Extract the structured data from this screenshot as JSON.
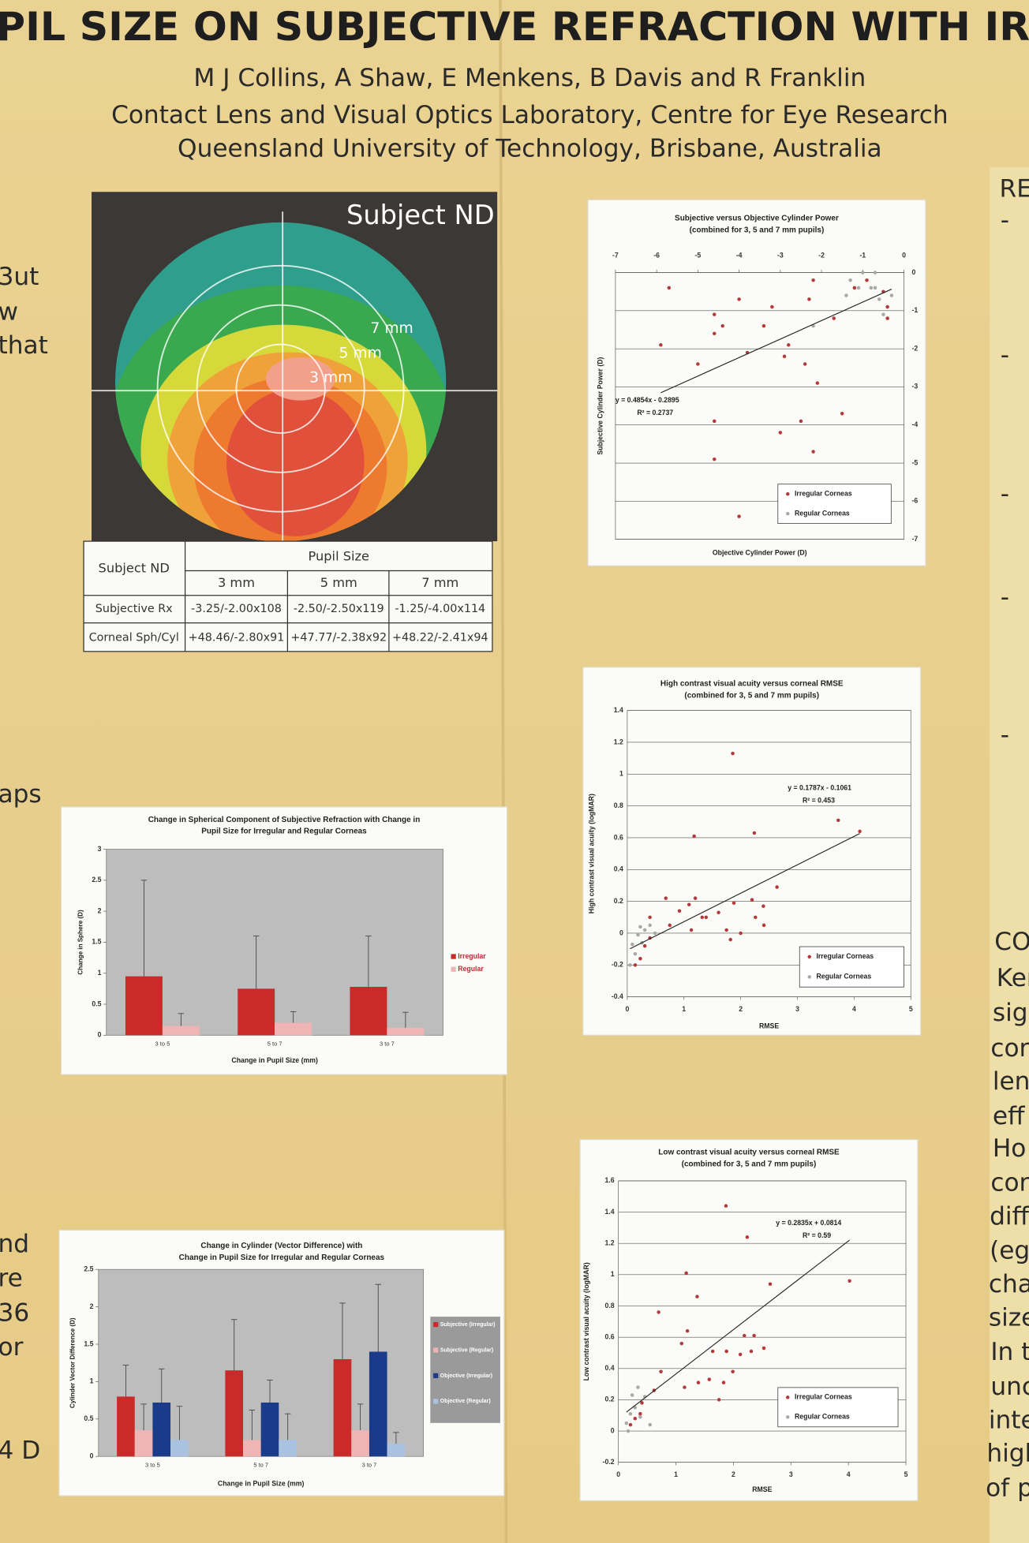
{
  "header": {
    "title": "PIL SIZE ON SUBJECTIVE REFRACTION WITH IR",
    "authors": "M J Collins, A Shaw, E Menkens, B Davis and R Franklin",
    "affiliation": [
      "Contact Lens and Visual Optics Laboratory, Centre for Eye Research",
      "Queensland University of Technology, Brisbane, Australia"
    ]
  },
  "left_fragments": [
    "3ut",
    "w",
    "that",
    "aps",
    "nd",
    "re",
    "36",
    "or",
    "4 D"
  ],
  "right_fragments": [
    "RE",
    "-",
    "-",
    "-",
    "-",
    "-",
    "CO",
    "Ker",
    "sig",
    "cor",
    "len",
    "eff",
    "Ho",
    "cor",
    "diff",
    "(eg",
    "cha",
    "size",
    "In t",
    "unc",
    "inte",
    "high",
    "of p"
  ],
  "figure": {
    "label": "Subject ND",
    "rings": [
      "7 mm",
      "5 mm",
      "3 mm"
    ]
  },
  "table": {
    "corner": "Subject ND",
    "group": "Pupil Size",
    "columns": [
      "3 mm",
      "5 mm",
      "7 mm"
    ],
    "rows": [
      [
        "Subjective Rx",
        "-3.25/-2.00x108",
        "-2.50/-2.50x119",
        "-1.25/-4.00x114"
      ],
      [
        "Corneal Sph/Cyl",
        "+48.46/-2.80x91",
        "+47.77/-2.38x92",
        "+48.22/-2.41x94"
      ]
    ]
  },
  "chart_data": [
    {
      "type": "scatter",
      "title": [
        "Subjective versus Objective Cylinder Power",
        "(combined for 3, 5 and 7 mm pupils)"
      ],
      "x_label": "Objective Cylinder Power (D)",
      "y_label": "Subjective Cylinder Power (D)",
      "xlim": [
        -7,
        0
      ],
      "ylim": [
        -7,
        0
      ],
      "xticks": [
        -7,
        -6,
        -5,
        -4,
        -3,
        -2,
        -1,
        0
      ],
      "yticks": [
        0,
        -1,
        -2,
        -3,
        -4,
        -5,
        -6,
        -7
      ],
      "x_axis_position": "top",
      "y_axis_position": "right",
      "grid": true,
      "series": [
        {
          "name": "Irregular Corneas",
          "color": "#b23a3a",
          "x": [
            -5.7,
            -5.9,
            -4.6,
            -4.4,
            -4.6,
            -4.0,
            -5.0,
            -4.6,
            -4.6,
            -4.0,
            -3.2,
            -3.4,
            -3.8,
            -2.8,
            -2.9,
            -3.0,
            -2.4,
            -2.1,
            -2.5,
            -2.2,
            -2.3,
            -2.2,
            -1.5,
            -1.7,
            -1.2,
            -0.9,
            -0.5,
            -0.4,
            -0.4
          ],
          "values": [
            -0.4,
            -1.9,
            -1.1,
            -1.4,
            -1.6,
            -0.7,
            -2.4,
            -3.9,
            -4.9,
            -6.4,
            -0.9,
            -1.4,
            -2.1,
            -1.9,
            -2.2,
            -4.2,
            -2.4,
            -2.9,
            -3.9,
            -4.7,
            -0.7,
            -0.2,
            -3.7,
            -1.2,
            -0.4,
            -0.2,
            -0.5,
            -0.9,
            -1.2
          ]
        },
        {
          "name": "Regular Corneas",
          "color": "#a8a8a8",
          "x": [
            -1.3,
            -1.1,
            -1.0,
            -0.8,
            -0.7,
            -0.6,
            -0.5,
            -1.4,
            -0.7,
            -0.3,
            -2.2
          ],
          "values": [
            -0.2,
            -0.4,
            0,
            -0.4,
            0,
            -0.7,
            -1.1,
            -0.6,
            -0.4,
            -0.6,
            -1.4
          ]
        }
      ],
      "trendline": {
        "slope": 0.4854,
        "intercept": -0.2895,
        "equation": "y = 0.4854x - 0.2895",
        "r_squared": "R² = 0.2737"
      }
    },
    {
      "type": "scatter",
      "title": [
        "High contrast visual acuity versus corneal RMSE",
        "(combined for 3, 5 and 7 mm pupils)"
      ],
      "x_label": "RMSE",
      "y_label": "High contrast visual acuity (logMAR)",
      "xlim": [
        0,
        5
      ],
      "ylim": [
        -0.4,
        1.4
      ],
      "xticks": [
        0,
        1,
        2,
        3,
        4,
        5
      ],
      "yticks": [
        -0.4,
        -0.2,
        0,
        0.2,
        0.4,
        0.6,
        0.8,
        1,
        1.2,
        1.4
      ],
      "x_axis_position": "bottom",
      "y_axis_position": "left",
      "grid": true,
      "series": [
        {
          "name": "Irregular Corneas",
          "color": "#b23a3a",
          "x": [
            1.86,
            1.18,
            2.24,
            3.72,
            4.1,
            2.64,
            0.68,
            1.2,
            1.09,
            1.32,
            1.39,
            1.88,
            1.61,
            2.2,
            2.4,
            2.26,
            2.41,
            1.75,
            2.0,
            1.82,
            1.13,
            0.4,
            0.75,
            0.31,
            0.4,
            0.23,
            0.14,
            0.92
          ],
          "values": [
            1.13,
            0.61,
            0.63,
            0.71,
            0.64,
            0.29,
            0.22,
            0.22,
            0.18,
            0.1,
            0.1,
            0.19,
            0.13,
            0.21,
            0.17,
            0.1,
            0.05,
            0.02,
            0,
            -0.04,
            0.02,
            0.1,
            0.05,
            -0.08,
            -0.03,
            -0.16,
            -0.2,
            0.14
          ]
        },
        {
          "name": "Regular Corneas",
          "color": "#a8a8a8",
          "x": [
            0.09,
            0.19,
            0.31,
            0.4,
            0.14,
            0.26,
            0.05,
            0.49,
            0.23
          ],
          "values": [
            -0.07,
            -0.01,
            0.02,
            0.05,
            -0.13,
            -0.06,
            -0.2,
            0,
            0.04
          ]
        }
      ],
      "trendline": {
        "slope": 0.1787,
        "intercept": -0.1061,
        "equation": "y = 0.1787x - 0.1061",
        "r_squared": "R² = 0.453"
      }
    },
    {
      "type": "scatter",
      "title": [
        "Low contrast visual acuity versus corneal RMSE",
        "(combined for 3, 5 and 7 mm pupils)"
      ],
      "x_label": "RMSE",
      "y_label": "Low contrast visual acuity (logMAR)",
      "xlim": [
        0,
        5
      ],
      "ylim": [
        -0.2,
        1.6
      ],
      "xticks": [
        0,
        1,
        2,
        3,
        4,
        5
      ],
      "yticks": [
        -0.2,
        0,
        0.2,
        0.4,
        0.6,
        0.8,
        1,
        1.2,
        1.4,
        1.6
      ],
      "x_axis_position": "bottom",
      "y_axis_position": "left",
      "grid": true,
      "series": [
        {
          "name": "Irregular Corneas",
          "color": "#b23a3a",
          "x": [
            1.87,
            2.24,
            1.18,
            1.37,
            2.64,
            4.02,
            0.7,
            1.2,
            1.1,
            2.19,
            2.36,
            1.64,
            1.88,
            2.12,
            2.31,
            2.53,
            1.99,
            0.74,
            1.15,
            1.39,
            1.58,
            1.83,
            1.75,
            0.62,
            0.41,
            0.29,
            0.38,
            0.21
          ],
          "values": [
            1.44,
            1.24,
            1.01,
            0.86,
            0.94,
            0.96,
            0.76,
            0.64,
            0.56,
            0.61,
            0.61,
            0.51,
            0.51,
            0.49,
            0.51,
            0.53,
            0.38,
            0.38,
            0.28,
            0.31,
            0.33,
            0.31,
            0.2,
            0.26,
            0.18,
            0.08,
            0.11,
            0.04
          ]
        },
        {
          "name": "Regular Corneas",
          "color": "#a8a8a8",
          "x": [
            0.14,
            0.21,
            0.29,
            0.38,
            0.46,
            0.17,
            0.24,
            0.55,
            0.34
          ],
          "values": [
            0.05,
            0.11,
            0.15,
            0.09,
            0.22,
            0,
            0.23,
            0.04,
            0.28
          ]
        }
      ],
      "trendline": {
        "slope": 0.2835,
        "intercept": 0.0814,
        "equation": "y = 0.2835x + 0.0814",
        "r_squared": "R² = 0.59"
      }
    },
    {
      "type": "bar",
      "title": [
        "Change in Spherical Component of Subjective Refraction with Change in",
        "Pupil Size for Irregular and Regular Corneas"
      ],
      "x_label": "Change in Pupil Size (mm)",
      "y_label": "Change in Sphere (D)",
      "categories": [
        "3 to 5",
        "5 to 7",
        "3 to 7"
      ],
      "ylim": [
        0,
        3
      ],
      "yticks": [
        0,
        0.5,
        1,
        1.5,
        2,
        2.5,
        3
      ],
      "grid": false,
      "series": [
        {
          "name": "Irregular",
          "color": "#c92a2a",
          "values": [
            0.95,
            0.75,
            0.78
          ],
          "errors": [
            1.55,
            0.85,
            0.82
          ]
        },
        {
          "name": "Regular",
          "color": "#efb4b4",
          "values": [
            0.15,
            0.2,
            0.12
          ],
          "errors": [
            0.2,
            0.18,
            0.25
          ]
        }
      ]
    },
    {
      "type": "bar",
      "title": [
        "Change in Cylinder (Vector Difference) with",
        "Change in Pupil Size for Irregular and Regular Corneas"
      ],
      "x_label": "Change in Pupil Size (mm)",
      "y_label": "Cylinder Vector Difference (D)",
      "categories": [
        "3 to 5",
        "5 to 7",
        "3 to 7"
      ],
      "ylim": [
        0,
        2.5
      ],
      "yticks": [
        0,
        0.5,
        1,
        1.5,
        2,
        2.5
      ],
      "grid": false,
      "series": [
        {
          "name": "Subjective (Irregular)",
          "color": "#c92a2a",
          "values": [
            0.8,
            1.15,
            1.3
          ],
          "errors": [
            0.42,
            0.68,
            0.75
          ]
        },
        {
          "name": "Subjective (Regular)",
          "color": "#efb4b4",
          "values": [
            0.35,
            0.22,
            0.35
          ],
          "errors": [
            0.35,
            0.4,
            0.35
          ]
        },
        {
          "name": "Objective (Irregular)",
          "color": "#1a3a8a",
          "values": [
            0.72,
            0.72,
            1.4
          ],
          "errors": [
            0.45,
            0.3,
            0.9
          ]
        },
        {
          "name": "Objective (Regular)",
          "color": "#a9c2e0",
          "values": [
            0.22,
            0.22,
            0.17
          ],
          "errors": [
            0.45,
            0.35,
            0.15
          ]
        }
      ]
    }
  ]
}
